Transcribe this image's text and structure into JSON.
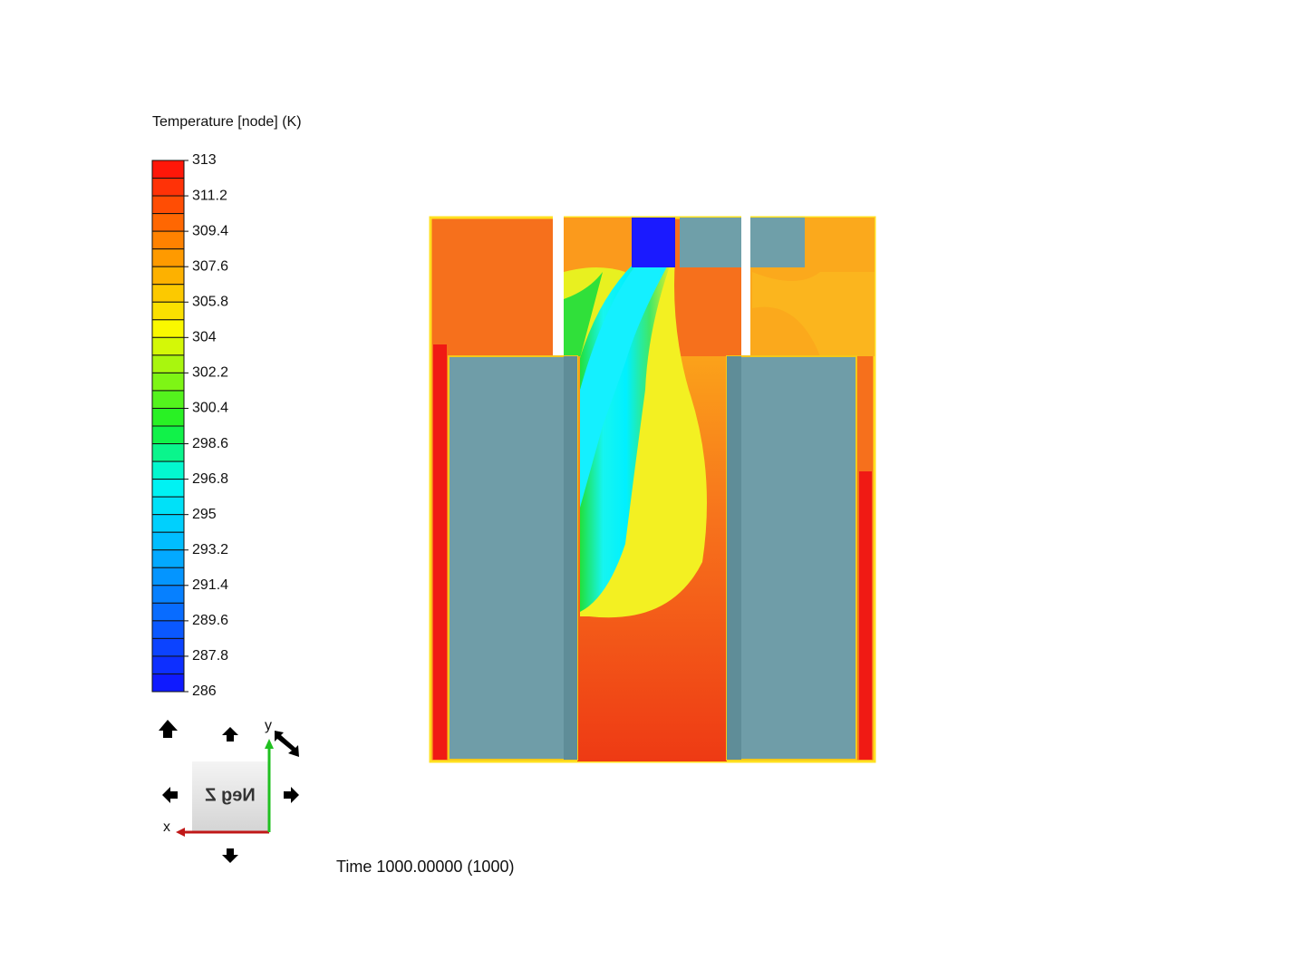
{
  "colorbar": {
    "title": "Temperature [node] (K)",
    "lim": [
      286,
      313
    ],
    "ticks": [
      313,
      311.2,
      309.4,
      307.6,
      305.8,
      304,
      302.2,
      300.4,
      298.6,
      296.8,
      295,
      293.2,
      291.4,
      289.6,
      287.8,
      286
    ]
  },
  "viewcube": {
    "face": "Neg Z",
    "x_axis": "x",
    "y_axis": "y"
  },
  "time_label": "Time 1000.00000 (1000)"
}
